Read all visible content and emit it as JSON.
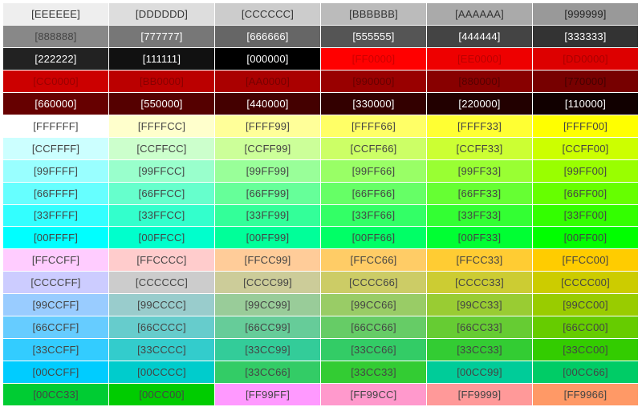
{
  "palette": {
    "rows": [
      [
        {
          "label": "[EEEEEE]",
          "bg": "#EEEEEE",
          "fg": "#333333"
        },
        {
          "label": "[DDDDDD]",
          "bg": "#DDDDDD",
          "fg": "#333333"
        },
        {
          "label": "[CCCCCC]",
          "bg": "#CCCCCC",
          "fg": "#333333"
        },
        {
          "label": "[BBBBBB]",
          "bg": "#BBBBBB",
          "fg": "#333333"
        },
        {
          "label": "[AAAAAA]",
          "bg": "#AAAAAA",
          "fg": "#333333"
        },
        {
          "label": "[999999]",
          "bg": "#999999",
          "fg": "#222222"
        }
      ],
      [
        {
          "label": "[888888]",
          "bg": "#888888",
          "fg": "#444444"
        },
        {
          "label": "[777777]",
          "bg": "#777777",
          "fg": "#ffffff"
        },
        {
          "label": "[666666]",
          "bg": "#666666",
          "fg": "#ffffff"
        },
        {
          "label": "[555555]",
          "bg": "#555555",
          "fg": "#ffffff"
        },
        {
          "label": "[444444]",
          "bg": "#444444",
          "fg": "#ffffff"
        },
        {
          "label": "[333333]",
          "bg": "#333333",
          "fg": "#ffffff"
        }
      ],
      [
        {
          "label": "[222222]",
          "bg": "#222222",
          "fg": "#ffffff"
        },
        {
          "label": "[111111]",
          "bg": "#111111",
          "fg": "#ffffff"
        },
        {
          "label": "[000000]",
          "bg": "#000000",
          "fg": "#ffffff"
        },
        {
          "label": "[FF0000]",
          "bg": "#FF0000",
          "fg": "#cc0000"
        },
        {
          "label": "[EE0000]",
          "bg": "#EE0000",
          "fg": "#bb0000"
        },
        {
          "label": "[DD0000]",
          "bg": "#DD0000",
          "fg": "#aa0000"
        }
      ],
      [
        {
          "label": "[CC0000]",
          "bg": "#CC0000",
          "fg": "#990000"
        },
        {
          "label": "[BB0000]",
          "bg": "#BB0000",
          "fg": "#880000"
        },
        {
          "label": "[AA0000]",
          "bg": "#AA0000",
          "fg": "#770000"
        },
        {
          "label": "[990000]",
          "bg": "#990000",
          "fg": "#660000"
        },
        {
          "label": "[880000]",
          "bg": "#880000",
          "fg": "#550000"
        },
        {
          "label": "[770000]",
          "bg": "#770000",
          "fg": "#440000"
        }
      ],
      [
        {
          "label": "[660000]",
          "bg": "#660000",
          "fg": "#ffffff"
        },
        {
          "label": "[550000]",
          "bg": "#550000",
          "fg": "#ffffff"
        },
        {
          "label": "[440000]",
          "bg": "#440000",
          "fg": "#ffffff"
        },
        {
          "label": "[330000]",
          "bg": "#330000",
          "fg": "#ffffff"
        },
        {
          "label": "[220000]",
          "bg": "#220000",
          "fg": "#ffffff"
        },
        {
          "label": "[110000]",
          "bg": "#110000",
          "fg": "#ffffff"
        }
      ],
      [
        {
          "label": "[FFFFFF]",
          "bg": "#FFFFFF",
          "fg": "#444444"
        },
        {
          "label": "[FFFFCC]",
          "bg": "#FFFFCC",
          "fg": "#444444"
        },
        {
          "label": "[FFFF99]",
          "bg": "#FFFF99",
          "fg": "#444444"
        },
        {
          "label": "[FFFF66]",
          "bg": "#FFFF66",
          "fg": "#444444"
        },
        {
          "label": "[FFFF33]",
          "bg": "#FFFF33",
          "fg": "#444444"
        },
        {
          "label": "[FFFF00]",
          "bg": "#FFFF00",
          "fg": "#444444"
        }
      ],
      [
        {
          "label": "[CCFFFF]",
          "bg": "#CCFFFF",
          "fg": "#444444"
        },
        {
          "label": "[CCFFCC]",
          "bg": "#CCFFCC",
          "fg": "#444444"
        },
        {
          "label": "[CCFF99]",
          "bg": "#CCFF99",
          "fg": "#444444"
        },
        {
          "label": "[CCFF66]",
          "bg": "#CCFF66",
          "fg": "#444444"
        },
        {
          "label": "[CCFF33]",
          "bg": "#CCFF33",
          "fg": "#444444"
        },
        {
          "label": "[CCFF00]",
          "bg": "#CCFF00",
          "fg": "#444444"
        }
      ],
      [
        {
          "label": "[99FFFF]",
          "bg": "#99FFFF",
          "fg": "#444444"
        },
        {
          "label": "[99FFCC]",
          "bg": "#99FFCC",
          "fg": "#444444"
        },
        {
          "label": "[99FF99]",
          "bg": "#99FF99",
          "fg": "#444444"
        },
        {
          "label": "[99FF66]",
          "bg": "#99FF66",
          "fg": "#444444"
        },
        {
          "label": "[99FF33]",
          "bg": "#99FF33",
          "fg": "#444444"
        },
        {
          "label": "[99FF00]",
          "bg": "#99FF00",
          "fg": "#444444"
        }
      ],
      [
        {
          "label": "[66FFFF]",
          "bg": "#66FFFF",
          "fg": "#444444"
        },
        {
          "label": "[66FFCC]",
          "bg": "#66FFCC",
          "fg": "#444444"
        },
        {
          "label": "[66FF99]",
          "bg": "#66FF99",
          "fg": "#444444"
        },
        {
          "label": "[66FF66]",
          "bg": "#66FF66",
          "fg": "#444444"
        },
        {
          "label": "[66FF33]",
          "bg": "#66FF33",
          "fg": "#444444"
        },
        {
          "label": "[66FF00]",
          "bg": "#66FF00",
          "fg": "#444444"
        }
      ],
      [
        {
          "label": "[33FFFF]",
          "bg": "#33FFFF",
          "fg": "#444444"
        },
        {
          "label": "[33FFCC]",
          "bg": "#33FFCC",
          "fg": "#444444"
        },
        {
          "label": "[33FF99]",
          "bg": "#33FF99",
          "fg": "#444444"
        },
        {
          "label": "[33FF66]",
          "bg": "#33FF66",
          "fg": "#444444"
        },
        {
          "label": "[33FF33]",
          "bg": "#33FF33",
          "fg": "#444444"
        },
        {
          "label": "[33FF00]",
          "bg": "#33FF00",
          "fg": "#444444"
        }
      ],
      [
        {
          "label": "[00FFFF]",
          "bg": "#00FFFF",
          "fg": "#444444"
        },
        {
          "label": "[00FFCC]",
          "bg": "#00FFCC",
          "fg": "#444444"
        },
        {
          "label": "[00FF99]",
          "bg": "#00FF99",
          "fg": "#444444"
        },
        {
          "label": "[00FF66]",
          "bg": "#00FF66",
          "fg": "#444444"
        },
        {
          "label": "[00FF33]",
          "bg": "#00FF33",
          "fg": "#444444"
        },
        {
          "label": "[00FF00]",
          "bg": "#00FF00",
          "fg": "#444444"
        }
      ],
      [
        {
          "label": "[FFCCFF]",
          "bg": "#FFCCFF",
          "fg": "#444444"
        },
        {
          "label": "[FFCCCC]",
          "bg": "#FFCCCC",
          "fg": "#444444"
        },
        {
          "label": "[FFCC99]",
          "bg": "#FFCC99",
          "fg": "#444444"
        },
        {
          "label": "[FFCC66]",
          "bg": "#FFCC66",
          "fg": "#444444"
        },
        {
          "label": "[FFCC33]",
          "bg": "#FFCC33",
          "fg": "#444444"
        },
        {
          "label": "[FFCC00]",
          "bg": "#FFCC00",
          "fg": "#444444"
        }
      ],
      [
        {
          "label": "[CCCCFF]",
          "bg": "#CCCCFF",
          "fg": "#444444"
        },
        {
          "label": "[CCCCCC]",
          "bg": "#CCCCCC",
          "fg": "#444444"
        },
        {
          "label": "[CCCC99]",
          "bg": "#CCCC99",
          "fg": "#444444"
        },
        {
          "label": "[CCCC66]",
          "bg": "#CCCC66",
          "fg": "#444444"
        },
        {
          "label": "[CCCC33]",
          "bg": "#CCCC33",
          "fg": "#444444"
        },
        {
          "label": "[CCCC00]",
          "bg": "#CCCC00",
          "fg": "#444444"
        }
      ],
      [
        {
          "label": "[99CCFF]",
          "bg": "#99CCFF",
          "fg": "#444444"
        },
        {
          "label": "[99CCCC]",
          "bg": "#99CCCC",
          "fg": "#444444"
        },
        {
          "label": "[99CC99]",
          "bg": "#99CC99",
          "fg": "#444444"
        },
        {
          "label": "[99CC66]",
          "bg": "#99CC66",
          "fg": "#444444"
        },
        {
          "label": "[99CC33]",
          "bg": "#99CC33",
          "fg": "#444444"
        },
        {
          "label": "[99CC00]",
          "bg": "#99CC00",
          "fg": "#444444"
        }
      ],
      [
        {
          "label": "[66CCFF]",
          "bg": "#66CCFF",
          "fg": "#444444"
        },
        {
          "label": "[66CCCC]",
          "bg": "#66CCCC",
          "fg": "#444444"
        },
        {
          "label": "[66CC99]",
          "bg": "#66CC99",
          "fg": "#444444"
        },
        {
          "label": "[66CC66]",
          "bg": "#66CC66",
          "fg": "#444444"
        },
        {
          "label": "[66CC33]",
          "bg": "#66CC33",
          "fg": "#444444"
        },
        {
          "label": "[66CC00]",
          "bg": "#66CC00",
          "fg": "#444444"
        }
      ],
      [
        {
          "label": "[33CCFF]",
          "bg": "#33CCFF",
          "fg": "#444444"
        },
        {
          "label": "[33CCCC]",
          "bg": "#33CCCC",
          "fg": "#444444"
        },
        {
          "label": "[33CC99]",
          "bg": "#33CC99",
          "fg": "#444444"
        },
        {
          "label": "[33CC66]",
          "bg": "#33CC66",
          "fg": "#444444"
        },
        {
          "label": "[33CC33]",
          "bg": "#33CC33",
          "fg": "#444444"
        },
        {
          "label": "[33CC00]",
          "bg": "#33CC00",
          "fg": "#444444"
        }
      ],
      [
        {
          "label": "[00CCFF]",
          "bg": "#00CCFF",
          "fg": "#444444"
        },
        {
          "label": "[00CCCC]",
          "bg": "#00CCCC",
          "fg": "#444444"
        },
        {
          "label": "[33CC66]",
          "bg": "#33CC66",
          "fg": "#444444"
        },
        {
          "label": "[33CC33]",
          "bg": "#33CC33",
          "fg": "#444444"
        },
        {
          "label": "[00CC99]",
          "bg": "#00CC99",
          "fg": "#444444"
        },
        {
          "label": "[00CC66]",
          "bg": "#00CC66",
          "fg": "#444444"
        }
      ],
      [
        {
          "label": "[00CC33]",
          "bg": "#00CC33",
          "fg": "#444444"
        },
        {
          "label": "[00CC00]",
          "bg": "#00CC00",
          "fg": "#444444"
        },
        {
          "label": "[FF99FF]",
          "bg": "#FF99FF",
          "fg": "#444444"
        },
        {
          "label": "[FF99CC]",
          "bg": "#FF99CC",
          "fg": "#444444"
        },
        {
          "label": "[FF9999]",
          "bg": "#FF9999",
          "fg": "#444444"
        },
        {
          "label": "[FF9966]",
          "bg": "#FF9966",
          "fg": "#444444"
        }
      ]
    ]
  }
}
